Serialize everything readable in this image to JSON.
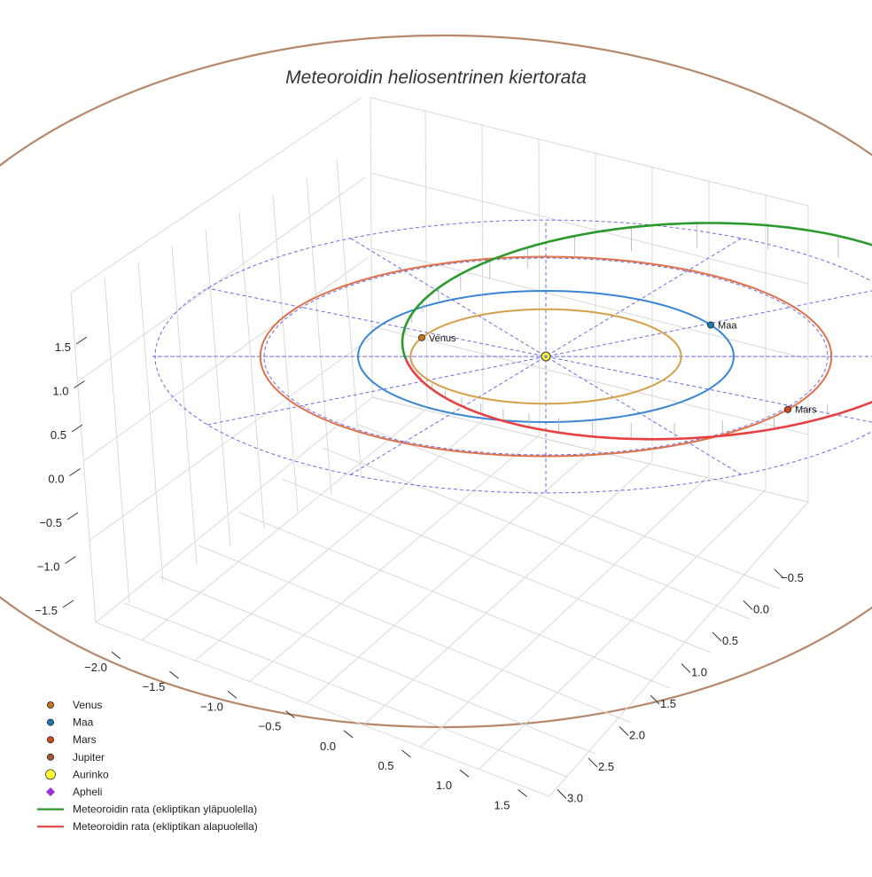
{
  "chart_data": {
    "type": "line",
    "projection": "3d",
    "title": "Meteoroidin heliosentrinen kiertorata",
    "xlabel": "",
    "ylabel": "",
    "zlabel": "",
    "xlim": [
      -2.2,
      1.7
    ],
    "ylim": [
      -0.7,
      3.1
    ],
    "zlim": [
      -1.8,
      1.8
    ],
    "x_ticks": [
      "−2.0",
      "−1.5",
      "−1.0",
      "−0.5",
      "0.0",
      "0.5",
      "1.0",
      "1.5"
    ],
    "y_ticks": [
      "−0.5",
      "0.0",
      "0.5",
      "1.0",
      "1.5",
      "2.0",
      "2.5",
      "3.0"
    ],
    "z_ticks": [
      "1.5",
      "1.0",
      "0.5",
      "0.0",
      "−0.5",
      "−1.0",
      "−1.5"
    ],
    "grid": true,
    "legend_position": "lower-left",
    "planets": [
      {
        "name": "Venus",
        "a_au": 0.72,
        "color": "#d4a04a",
        "marker": "#c8741e"
      },
      {
        "name": "Maa",
        "a_au": 1.0,
        "color": "#3a86d4",
        "marker": "#1f77b4"
      },
      {
        "name": "Mars",
        "a_au": 1.52,
        "color": "#e0714a",
        "marker": "#d2491f"
      },
      {
        "name": "Jupiter",
        "a_au": 5.2,
        "color": "#b8876a",
        "marker": "#a9562b"
      }
    ],
    "sun": {
      "name": "Aurinko",
      "color": "#ffff33"
    },
    "aphelion": {
      "name": "Apheli",
      "color": "#9b30d9"
    },
    "series": [
      {
        "name": "Meteoroidin rata (ekliptikan yläpuolella)",
        "color": "#2a9a2a"
      },
      {
        "name": "Meteoroidin rata (ekliptikan alapuolella)",
        "color": "#e84040"
      }
    ],
    "planet_labels": [
      "Venus",
      "Maa",
      "Mars"
    ]
  }
}
